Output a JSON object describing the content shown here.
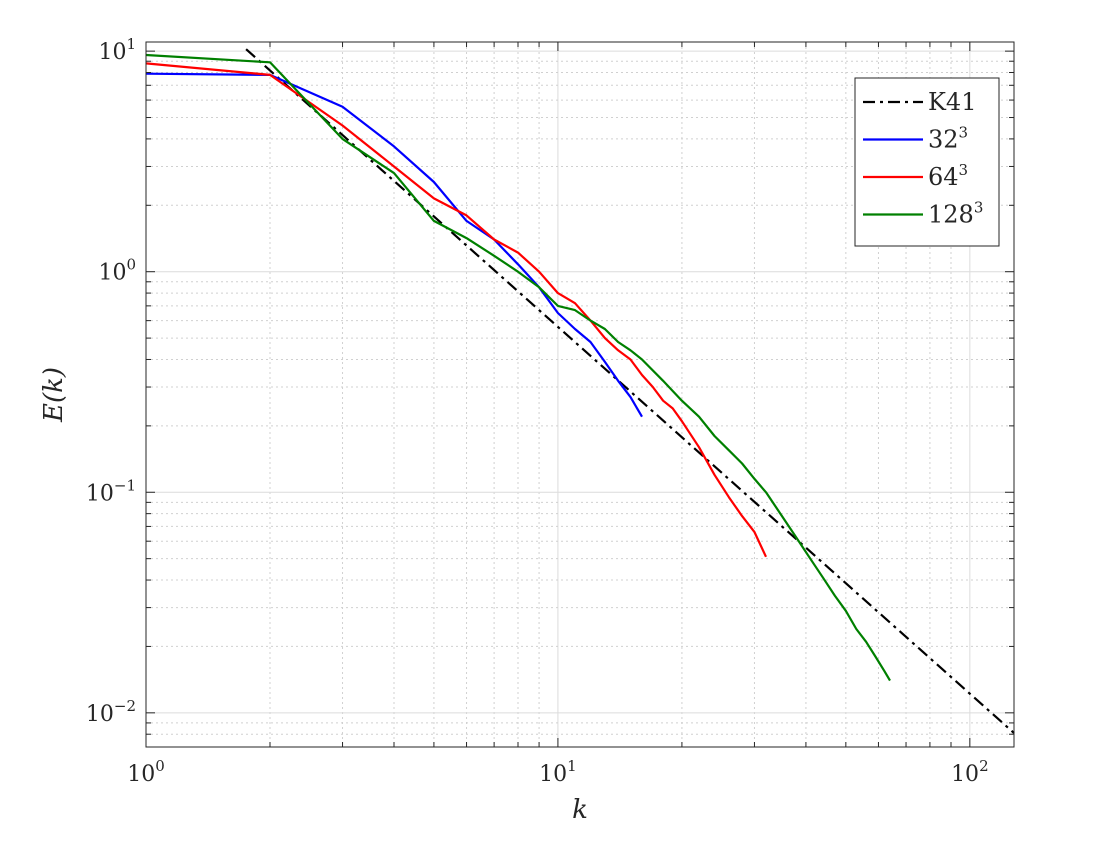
{
  "chart_data": {
    "type": "line",
    "xlabel": "k",
    "ylabel": "E(k)",
    "xscale": "log",
    "yscale": "log",
    "xlim": [
      1,
      128
    ],
    "ylim": [
      0.007,
      11
    ],
    "grid": true,
    "minor_grid": true,
    "legend_position": "top-right",
    "x_ticks": [
      {
        "value": 1,
        "base": "10",
        "exp": "0"
      },
      {
        "value": 10,
        "base": "10",
        "exp": "1"
      },
      {
        "value": 100,
        "base": "10",
        "exp": "2"
      }
    ],
    "y_ticks": [
      {
        "value": 0.01,
        "base": "10",
        "exp": "−2"
      },
      {
        "value": 0.1,
        "base": "10",
        "exp": "−1"
      },
      {
        "value": 1,
        "base": "10",
        "exp": "0"
      },
      {
        "value": 10,
        "base": "10",
        "exp": "1"
      }
    ],
    "series": [
      {
        "name": "K41",
        "name_base": "K41",
        "name_sup": "",
        "color": "#000000",
        "dash": "dashdot",
        "x": [
          1.75,
          128
        ],
        "y": [
          10.2,
          0.0081
        ]
      },
      {
        "name": "32^3",
        "name_base": "32",
        "name_sup": "3",
        "color": "#0000ff",
        "dash": "solid",
        "x": [
          1,
          2,
          3,
          4,
          5,
          6,
          7,
          8,
          9,
          10,
          11,
          12,
          13,
          14,
          15,
          16
        ],
        "y": [
          7.9,
          7.8,
          5.6,
          3.7,
          2.55,
          1.7,
          1.4,
          1.08,
          0.85,
          0.65,
          0.55,
          0.48,
          0.39,
          0.32,
          0.27,
          0.22
        ]
      },
      {
        "name": "64^3",
        "name_base": "64",
        "name_sup": "3",
        "color": "#ff0000",
        "dash": "solid",
        "x": [
          1,
          2,
          3,
          4,
          5,
          6,
          7,
          8,
          9,
          10,
          11,
          12,
          13,
          14,
          15,
          16,
          17,
          18,
          19,
          20,
          22,
          24,
          26,
          28,
          30,
          32
        ],
        "y": [
          8.8,
          7.8,
          4.6,
          3.0,
          2.15,
          1.8,
          1.4,
          1.22,
          1.0,
          0.8,
          0.72,
          0.6,
          0.5,
          0.44,
          0.4,
          0.34,
          0.3,
          0.26,
          0.24,
          0.21,
          0.16,
          0.12,
          0.095,
          0.078,
          0.066,
          0.051
        ]
      },
      {
        "name": "128^3",
        "name_base": "128",
        "name_sup": "3",
        "color": "#008000",
        "dash": "solid",
        "x": [
          1,
          2,
          3,
          4,
          5,
          6,
          7,
          8,
          9,
          10,
          11,
          12,
          13,
          14,
          15,
          16,
          18,
          20,
          22,
          24,
          26,
          28,
          30,
          32,
          35,
          38,
          41,
          44,
          47,
          50,
          53,
          56,
          59,
          62,
          64
        ],
        "y": [
          9.6,
          8.9,
          4.0,
          2.8,
          1.7,
          1.42,
          1.18,
          1.0,
          0.85,
          0.7,
          0.67,
          0.6,
          0.55,
          0.48,
          0.44,
          0.4,
          0.32,
          0.26,
          0.22,
          0.18,
          0.155,
          0.135,
          0.115,
          0.1,
          0.078,
          0.062,
          0.05,
          0.041,
          0.034,
          0.029,
          0.024,
          0.021,
          0.018,
          0.0155,
          0.014
        ]
      }
    ]
  }
}
